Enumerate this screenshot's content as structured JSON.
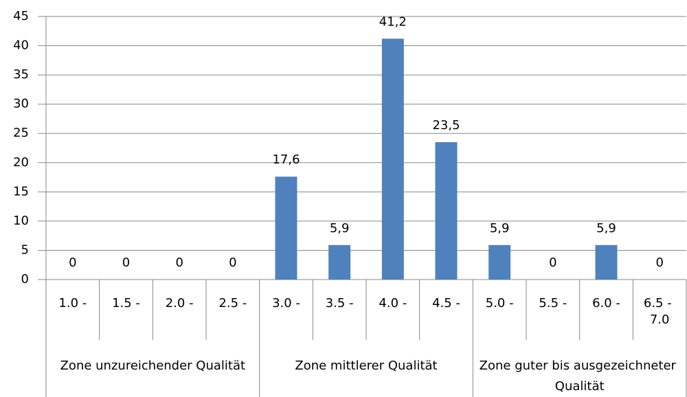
{
  "chart_data": {
    "type": "bar",
    "categories": [
      "1.0 -",
      "1.5 -",
      "2.0 -",
      "2.5 -",
      "3.0 -",
      "3.5 -",
      "4.0 -",
      "4.5 -",
      "5.0 -",
      "5.5 -",
      "6.0 -",
      "6.5 - 7.0"
    ],
    "values": [
      0,
      0,
      0,
      0,
      17.6,
      5.9,
      41.2,
      23.5,
      5.9,
      0,
      5.9,
      0
    ],
    "value_labels": [
      "0",
      "0",
      "0",
      "0",
      "17,6",
      "5,9",
      "41,2",
      "23,5",
      "5,9",
      "0",
      "5,9",
      "0"
    ],
    "groups": [
      {
        "label": "Zone unzureichender Qualität",
        "span": [
          0,
          3
        ]
      },
      {
        "label": "Zone mittlerer Qualität",
        "span": [
          4,
          7
        ]
      },
      {
        "label": "Zone guter bis ausgezeichneter Qualität",
        "span": [
          8,
          11
        ]
      }
    ],
    "color": "#4f81bd",
    "ylim": [
      0,
      45
    ],
    "yticks": [
      0,
      5,
      10,
      15,
      20,
      25,
      30,
      35,
      40,
      45
    ],
    "grid": true
  }
}
